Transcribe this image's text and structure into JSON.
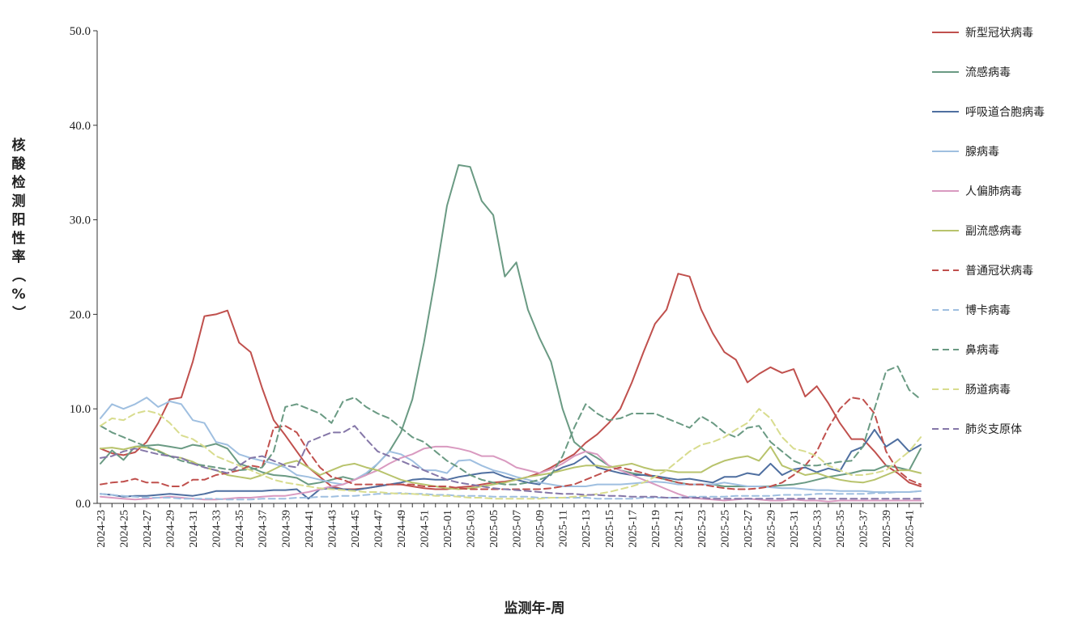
{
  "chart_data": {
    "type": "line",
    "title": "",
    "xlabel": "监测年-周",
    "ylabel": "核酸检测阳性率（%）",
    "ylim": [
      0,
      50
    ],
    "yticks": [
      "0.0",
      "10.0",
      "20.0",
      "30.0",
      "40.0",
      "50.0"
    ],
    "grid": false,
    "legend_position": "right",
    "x": [
      "2024-23",
      "2024-24",
      "2024-25",
      "2024-26",
      "2024-27",
      "2024-28",
      "2024-29",
      "2024-30",
      "2024-31",
      "2024-32",
      "2024-33",
      "2024-34",
      "2024-35",
      "2024-36",
      "2024-37",
      "2024-38",
      "2024-39",
      "2024-40",
      "2024-41",
      "2024-42",
      "2024-43",
      "2024-44",
      "2024-45",
      "2024-46",
      "2024-47",
      "2024-48",
      "2024-49",
      "2024-50",
      "2024-51",
      "2024-52",
      "2025-01",
      "2025-02",
      "2025-03",
      "2025-04",
      "2025-05",
      "2025-06",
      "2025-07",
      "2025-08",
      "2025-09",
      "2025-10",
      "2025-11",
      "2025-12",
      "2025-13",
      "2025-14",
      "2025-15",
      "2025-16",
      "2025-17",
      "2025-18",
      "2025-19",
      "2025-20",
      "2025-21",
      "2025-22",
      "2025-23",
      "2025-24",
      "2025-25",
      "2025-26",
      "2025-27",
      "2025-28",
      "2025-29",
      "2025-30",
      "2025-31",
      "2025-32",
      "2025-33",
      "2025-34",
      "2025-35",
      "2025-36",
      "2025-37",
      "2025-38",
      "2025-39",
      "2025-40",
      "2025-41",
      "2025-42"
    ],
    "x_tick_labels": [
      "2024-23",
      "2024-25",
      "2024-27",
      "2024-29",
      "2024-31",
      "2024-33",
      "2024-35",
      "2024-37",
      "2024-39",
      "2024-41",
      "2024-43",
      "2024-45",
      "2024-47",
      "2024-49",
      "2024-51",
      "2025-01",
      "2025-03",
      "2025-05",
      "2025-07",
      "2025-09",
      "2025-11",
      "2025-13",
      "2025-15",
      "2025-17",
      "2025-19",
      "2025-21",
      "2025-23",
      "2025-25",
      "2025-27",
      "2025-29",
      "2025-31",
      "2025-33",
      "2025-35",
      "2025-37",
      "2025-39",
      "2025-41"
    ],
    "series": [
      {
        "name": "新型冠状病毒",
        "color": "#c0504d",
        "dash": "solid",
        "values": [
          5.8,
          5.3,
          5.1,
          5.4,
          6.5,
          8.5,
          11.0,
          11.2,
          15.0,
          19.8,
          20.0,
          20.4,
          17.0,
          16.0,
          12.2,
          8.8,
          7.2,
          5.5,
          3.8,
          2.8,
          1.8,
          1.5,
          1.5,
          1.6,
          1.8,
          2.0,
          2.0,
          1.8,
          1.6,
          1.5,
          1.5,
          1.7,
          1.8,
          2.0,
          2.2,
          2.3,
          2.5,
          2.8,
          3.2,
          3.8,
          4.5,
          5.2,
          6.4,
          7.3,
          8.5,
          10.0,
          12.8,
          16.0,
          19.0,
          20.5,
          24.3,
          24.0,
          20.5,
          18.0,
          16.0,
          15.2,
          12.8,
          13.7,
          14.4,
          13.8,
          14.2,
          11.3,
          12.4,
          10.6,
          8.5,
          6.8,
          6.8,
          5.5,
          4.0,
          3.2,
          2.2,
          1.8
        ]
      },
      {
        "name": "流感病毒",
        "color": "#6a9a83",
        "dash": "solid",
        "values": [
          4.2,
          5.6,
          4.6,
          6.0,
          6.1,
          6.2,
          6.0,
          5.8,
          6.2,
          6.0,
          6.3,
          5.8,
          4.2,
          3.8,
          3.3,
          3.0,
          2.9,
          2.7,
          2.0,
          2.2,
          2.5,
          2.8,
          2.5,
          3.0,
          4.2,
          5.5,
          7.5,
          11.0,
          17.0,
          24.0,
          31.5,
          35.8,
          35.6,
          32.0,
          30.5,
          24.0,
          25.5,
          20.5,
          17.5,
          15.0,
          10.0,
          6.5,
          5.5,
          4.8,
          4.0,
          3.5,
          3.2,
          3.0,
          2.8,
          2.5,
          2.2,
          2.0,
          2.0,
          2.0,
          1.8,
          1.8,
          1.8,
          1.8,
          1.8,
          1.9,
          2.0,
          2.2,
          2.5,
          2.8,
          3.0,
          3.2,
          3.5,
          3.5,
          4.0,
          3.8,
          3.5,
          5.8
        ]
      },
      {
        "name": "呼吸道合胞病毒",
        "color": "#4f6fa0",
        "dash": "solid",
        "values": [
          1.0,
          0.9,
          0.7,
          0.8,
          0.8,
          0.9,
          1.0,
          0.9,
          0.8,
          1.0,
          1.3,
          1.3,
          1.3,
          1.3,
          1.3,
          1.4,
          1.4,
          1.5,
          0.5,
          1.5,
          1.6,
          1.5,
          1.4,
          1.6,
          1.8,
          2.0,
          2.2,
          2.5,
          2.6,
          2.5,
          2.5,
          2.8,
          3.0,
          3.2,
          3.3,
          2.8,
          2.5,
          2.2,
          2.0,
          3.2,
          3.8,
          4.2,
          5.0,
          3.8,
          3.5,
          3.2,
          3.0,
          3.0,
          2.9,
          2.7,
          2.5,
          2.6,
          2.4,
          2.2,
          2.8,
          2.8,
          3.2,
          3.0,
          4.2,
          3.0,
          3.6,
          3.8,
          3.3,
          3.7,
          3.4,
          5.5,
          6.0,
          7.8,
          6.0,
          6.8,
          5.5,
          6.2
        ]
      },
      {
        "name": "腺病毒",
        "color": "#9fbfe0",
        "dash": "solid",
        "values": [
          9.0,
          10.5,
          10.0,
          10.5,
          11.2,
          10.2,
          10.8,
          10.5,
          8.8,
          8.5,
          6.5,
          6.2,
          5.2,
          4.8,
          4.5,
          4.2,
          3.8,
          3.0,
          2.8,
          2.5,
          2.2,
          2.0,
          2.5,
          3.2,
          4.2,
          5.5,
          5.2,
          4.5,
          3.5,
          3.5,
          3.2,
          4.5,
          4.6,
          4.0,
          3.5,
          3.2,
          2.8,
          2.5,
          2.2,
          2.0,
          1.8,
          1.8,
          1.8,
          2.0,
          2.0,
          2.0,
          2.1,
          2.2,
          2.3,
          2.2,
          2.0,
          2.0,
          2.0,
          2.0,
          2.2,
          2.0,
          1.8,
          1.8,
          1.7,
          1.6,
          1.6,
          1.5,
          1.4,
          1.4,
          1.3,
          1.3,
          1.3,
          1.2,
          1.2,
          1.2,
          1.2,
          1.3
        ]
      },
      {
        "name": "人偏肺病毒",
        "color": "#d99ac0",
        "dash": "solid",
        "values": [
          0.7,
          0.6,
          0.5,
          0.4,
          0.5,
          0.6,
          0.7,
          0.6,
          0.5,
          0.4,
          0.4,
          0.5,
          0.6,
          0.6,
          0.7,
          0.8,
          0.8,
          1.0,
          1.2,
          1.5,
          1.8,
          2.0,
          2.5,
          3.0,
          3.5,
          4.2,
          4.8,
          5.2,
          5.8,
          6.0,
          6.0,
          5.8,
          5.5,
          5.0,
          5.0,
          4.5,
          3.8,
          3.5,
          3.2,
          3.6,
          4.2,
          5.0,
          5.5,
          5.2,
          4.0,
          3.5,
          3.0,
          2.5,
          2.0,
          1.5,
          1.0,
          0.6,
          0.5,
          0.4,
          0.3,
          0.4,
          0.5,
          0.4,
          0.3,
          0.3,
          0.4,
          0.3,
          0.3,
          0.2,
          0.3,
          0.3,
          0.3,
          0.3,
          0.3,
          0.3,
          0.3,
          0.3
        ]
      },
      {
        "name": "副流感病毒",
        "color": "#b8c36c",
        "dash": "solid",
        "values": [
          5.8,
          5.9,
          5.7,
          6.0,
          5.9,
          5.6,
          5.0,
          4.8,
          4.4,
          3.8,
          3.5,
          3.0,
          2.8,
          2.6,
          3.0,
          3.6,
          4.2,
          4.5,
          3.8,
          3.0,
          3.5,
          4.0,
          4.2,
          3.8,
          3.5,
          3.0,
          2.5,
          2.2,
          2.0,
          1.8,
          1.6,
          1.5,
          1.6,
          1.8,
          2.0,
          2.2,
          2.5,
          2.8,
          3.0,
          3.2,
          3.5,
          3.8,
          4.0,
          4.0,
          3.8,
          4.0,
          4.2,
          3.8,
          3.5,
          3.5,
          3.3,
          3.3,
          3.3,
          4.0,
          4.5,
          4.8,
          5.0,
          4.5,
          6.0,
          4.0,
          3.5,
          3.0,
          3.2,
          2.8,
          2.5,
          2.3,
          2.2,
          2.5,
          3.0,
          3.5,
          3.5,
          3.2
        ]
      },
      {
        "name": "普通冠状病毒",
        "color": "#c0504d",
        "dash": "dash",
        "values": [
          2.0,
          2.2,
          2.3,
          2.6,
          2.2,
          2.2,
          1.8,
          1.8,
          2.5,
          2.5,
          3.0,
          3.2,
          3.5,
          4.0,
          3.8,
          8.0,
          8.2,
          7.5,
          5.5,
          3.8,
          2.8,
          2.5,
          2.0,
          2.0,
          2.0,
          2.0,
          2.0,
          2.0,
          1.8,
          1.8,
          1.8,
          1.6,
          1.5,
          1.5,
          1.5,
          1.5,
          1.5,
          1.5,
          1.5,
          1.6,
          1.8,
          2.0,
          2.5,
          3.0,
          3.5,
          3.8,
          3.5,
          3.2,
          2.8,
          2.5,
          2.2,
          2.0,
          2.0,
          1.8,
          1.6,
          1.5,
          1.5,
          1.6,
          1.8,
          2.2,
          3.0,
          4.0,
          5.5,
          8.0,
          10.0,
          11.2,
          11.0,
          9.5,
          5.5,
          3.5,
          2.5,
          2.0
        ]
      },
      {
        "name": "博卡病毒",
        "color": "#9fbfe0",
        "dash": "dash",
        "values": [
          1.0,
          0.9,
          0.8,
          0.7,
          0.6,
          0.6,
          0.6,
          0.5,
          0.5,
          0.5,
          0.5,
          0.4,
          0.4,
          0.4,
          0.5,
          0.5,
          0.5,
          0.6,
          0.6,
          0.7,
          0.7,
          0.8,
          0.8,
          0.9,
          1.0,
          1.0,
          1.1,
          1.0,
          1.0,
          0.9,
          0.9,
          0.8,
          0.8,
          0.8,
          0.7,
          0.7,
          0.7,
          0.7,
          0.6,
          0.6,
          0.6,
          0.6,
          0.6,
          0.5,
          0.5,
          0.5,
          0.5,
          0.6,
          0.6,
          0.6,
          0.6,
          0.7,
          0.7,
          0.7,
          0.7,
          0.8,
          0.8,
          0.8,
          0.8,
          0.9,
          0.9,
          0.9,
          1.0,
          1.0,
          1.0,
          1.0,
          1.0,
          1.1,
          1.1,
          1.2,
          1.2,
          1.3
        ]
      },
      {
        "name": "鼻病毒",
        "color": "#6a9a83",
        "dash": "dash",
        "values": [
          8.2,
          7.5,
          7.0,
          6.5,
          6.0,
          5.5,
          5.0,
          4.5,
          4.2,
          4.0,
          3.8,
          3.6,
          3.5,
          3.6,
          3.8,
          5.5,
          10.2,
          10.5,
          10.0,
          9.5,
          8.5,
          10.8,
          11.2,
          10.2,
          9.5,
          9.0,
          8.0,
          7.0,
          6.5,
          5.5,
          4.5,
          3.8,
          3.0,
          2.5,
          2.2,
          2.0,
          2.0,
          2.2,
          2.5,
          3.0,
          5.0,
          8.0,
          10.5,
          9.5,
          8.8,
          9.0,
          9.5,
          9.5,
          9.5,
          9.0,
          8.5,
          8.0,
          9.2,
          8.5,
          7.5,
          7.0,
          8.0,
          8.2,
          6.5,
          5.5,
          4.5,
          4.0,
          4.0,
          4.2,
          4.4,
          4.5,
          6.0,
          10.0,
          14.0,
          14.5,
          12.0,
          11.0
        ]
      },
      {
        "name": "肠道病毒",
        "color": "#d8dc8e",
        "dash": "dash",
        "values": [
          8.2,
          9.0,
          8.8,
          9.5,
          9.8,
          9.5,
          8.5,
          7.2,
          6.8,
          6.0,
          5.0,
          4.5,
          4.0,
          3.5,
          3.0,
          2.5,
          2.2,
          2.0,
          1.8,
          1.6,
          1.5,
          1.4,
          1.3,
          1.2,
          1.2,
          1.1,
          1.0,
          1.0,
          0.9,
          0.8,
          0.8,
          0.7,
          0.6,
          0.6,
          0.5,
          0.5,
          0.5,
          0.5,
          0.5,
          0.6,
          0.6,
          0.7,
          0.8,
          1.0,
          1.2,
          1.5,
          1.8,
          2.2,
          2.8,
          3.5,
          4.5,
          5.5,
          6.2,
          6.5,
          7.0,
          7.8,
          8.5,
          10.0,
          9.0,
          7.0,
          5.8,
          5.5,
          5.0,
          4.0,
          3.5,
          3.0,
          3.0,
          3.2,
          3.5,
          4.5,
          5.5,
          7.0
        ]
      },
      {
        "name": "肺炎支原体",
        "color": "#8577a8",
        "dash": "dash",
        "values": [
          4.8,
          5.0,
          5.5,
          5.8,
          5.5,
          5.2,
          5.0,
          4.8,
          4.2,
          3.8,
          3.5,
          3.2,
          4.0,
          4.8,
          5.0,
          4.5,
          4.0,
          3.8,
          6.5,
          7.0,
          7.5,
          7.5,
          8.2,
          6.8,
          5.5,
          5.0,
          4.5,
          4.0,
          3.5,
          3.0,
          2.5,
          2.2,
          2.0,
          1.8,
          1.6,
          1.5,
          1.4,
          1.3,
          1.2,
          1.1,
          1.0,
          1.0,
          0.9,
          0.9,
          0.8,
          0.8,
          0.7,
          0.7,
          0.7,
          0.6,
          0.6,
          0.6,
          0.6,
          0.5,
          0.5,
          0.5,
          0.5,
          0.5,
          0.5,
          0.5,
          0.5,
          0.5,
          0.5,
          0.5,
          0.5,
          0.5,
          0.5,
          0.5,
          0.5,
          0.5,
          0.5,
          0.5
        ]
      }
    ]
  }
}
